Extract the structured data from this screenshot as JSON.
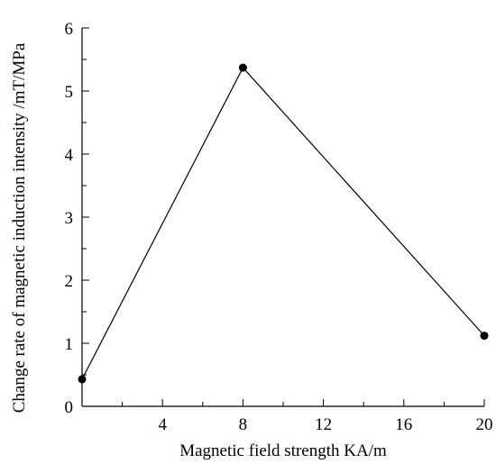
{
  "chart_data": {
    "type": "line",
    "title": "",
    "xlabel": "Magnetic field strength KA/m",
    "ylabel": "Change rate of magnetic induction intensity /mT/MPa",
    "xlim": [
      0,
      20
    ],
    "ylim": [
      0,
      6
    ],
    "xticks": [
      4,
      8,
      12,
      16,
      20
    ],
    "yticks": [
      0,
      1,
      2,
      3,
      4,
      5,
      6
    ],
    "grid": false,
    "legend": "none",
    "series": [
      {
        "x": [
          0,
          8,
          20
        ],
        "y": [
          0.43,
          5.37,
          1.12
        ],
        "color": "#000000",
        "marker": "circle"
      }
    ]
  }
}
